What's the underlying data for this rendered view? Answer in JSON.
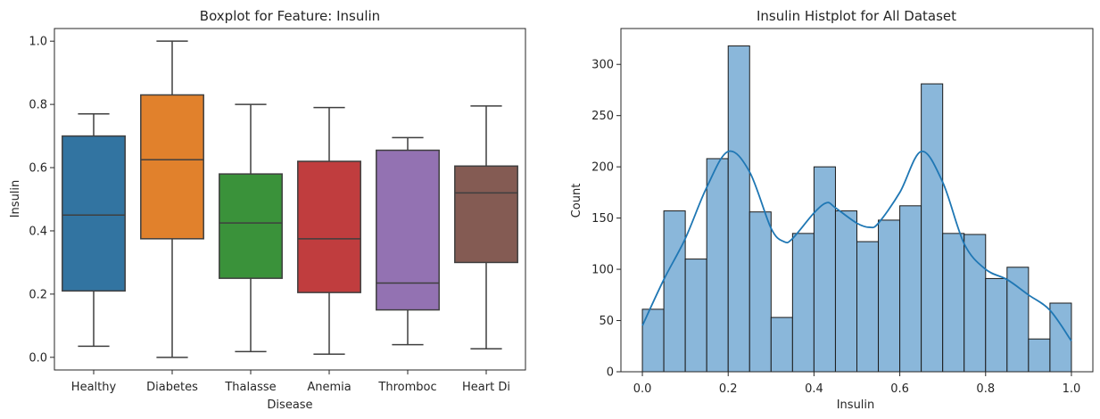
{
  "chart_data": [
    {
      "type": "box",
      "title": "Boxplot for Feature: Insulin",
      "xlabel": "Disease",
      "ylabel": "Insulin",
      "ylim": [
        -0.04,
        1.04
      ],
      "yticks": [
        0.0,
        0.2,
        0.4,
        0.6,
        0.8,
        1.0
      ],
      "ytick_labels": [
        "0.0",
        "0.2",
        "0.4",
        "0.6",
        "0.8",
        "1.0"
      ],
      "categories": [
        "Healthy",
        "Diabetes",
        "Thalasse",
        "Anemia",
        "Thromboc",
        "Heart Di"
      ],
      "boxes": [
        {
          "category": "Healthy",
          "whisker_low": 0.035,
          "q1": 0.21,
          "median": 0.45,
          "q3": 0.7,
          "whisker_high": 0.77,
          "color": "#3274a1"
        },
        {
          "category": "Diabetes",
          "whisker_low": 0.0,
          "q1": 0.375,
          "median": 0.625,
          "q3": 0.83,
          "whisker_high": 1.0,
          "color": "#e1812c"
        },
        {
          "category": "Thalasse",
          "whisker_low": 0.018,
          "q1": 0.25,
          "median": 0.425,
          "q3": 0.58,
          "whisker_high": 0.8,
          "color": "#3a923a"
        },
        {
          "category": "Anemia",
          "whisker_low": 0.01,
          "q1": 0.205,
          "median": 0.375,
          "q3": 0.62,
          "whisker_high": 0.79,
          "color": "#c03d3e"
        },
        {
          "category": "Thromboc",
          "whisker_low": 0.04,
          "q1": 0.15,
          "median": 0.235,
          "q3": 0.655,
          "whisker_high": 0.695,
          "color": "#9372b2"
        },
        {
          "category": "Heart Di",
          "whisker_low": 0.027,
          "q1": 0.3,
          "median": 0.52,
          "q3": 0.605,
          "whisker_high": 0.795,
          "color": "#845b53"
        }
      ]
    },
    {
      "type": "histogram",
      "title": "Insulin Histplot for All Dataset",
      "xlabel": "Insulin",
      "ylabel": "Count",
      "xlim": [
        -0.05,
        1.05
      ],
      "ylim": [
        0,
        335
      ],
      "xticks": [
        0.0,
        0.2,
        0.4,
        0.6,
        0.8,
        1.0
      ],
      "xtick_labels": [
        "0.0",
        "0.2",
        "0.4",
        "0.6",
        "0.8",
        "1.0"
      ],
      "yticks": [
        0,
        50,
        100,
        150,
        200,
        250,
        300
      ],
      "ytick_labels": [
        "0",
        "50",
        "100",
        "150",
        "200",
        "250",
        "300"
      ],
      "bin_edges": [
        0.0,
        0.05,
        0.1,
        0.15,
        0.2,
        0.25,
        0.3,
        0.35,
        0.4,
        0.45,
        0.5,
        0.55,
        0.6,
        0.65,
        0.7,
        0.75,
        0.8,
        0.85,
        0.9,
        0.95,
        1.0
      ],
      "counts": [
        61,
        157,
        110,
        208,
        318,
        156,
        53,
        135,
        200,
        157,
        127,
        148,
        162,
        281,
        135,
        134,
        91,
        102,
        32,
        67
      ],
      "bar_color": "#8ab7da",
      "kde_color": "#1f77b4",
      "kde": {
        "x": [
          0.0,
          0.05,
          0.1,
          0.15,
          0.2,
          0.25,
          0.3,
          0.33,
          0.35,
          0.4,
          0.43,
          0.45,
          0.5,
          0.53,
          0.55,
          0.6,
          0.65,
          0.7,
          0.75,
          0.8,
          0.85,
          0.9,
          0.95,
          1.0
        ],
        "y": [
          45,
          90,
          130,
          180,
          215,
          195,
          140,
          127,
          130,
          155,
          165,
          160,
          145,
          141,
          145,
          175,
          215,
          185,
          125,
          100,
          90,
          75,
          60,
          30
        ]
      }
    }
  ]
}
